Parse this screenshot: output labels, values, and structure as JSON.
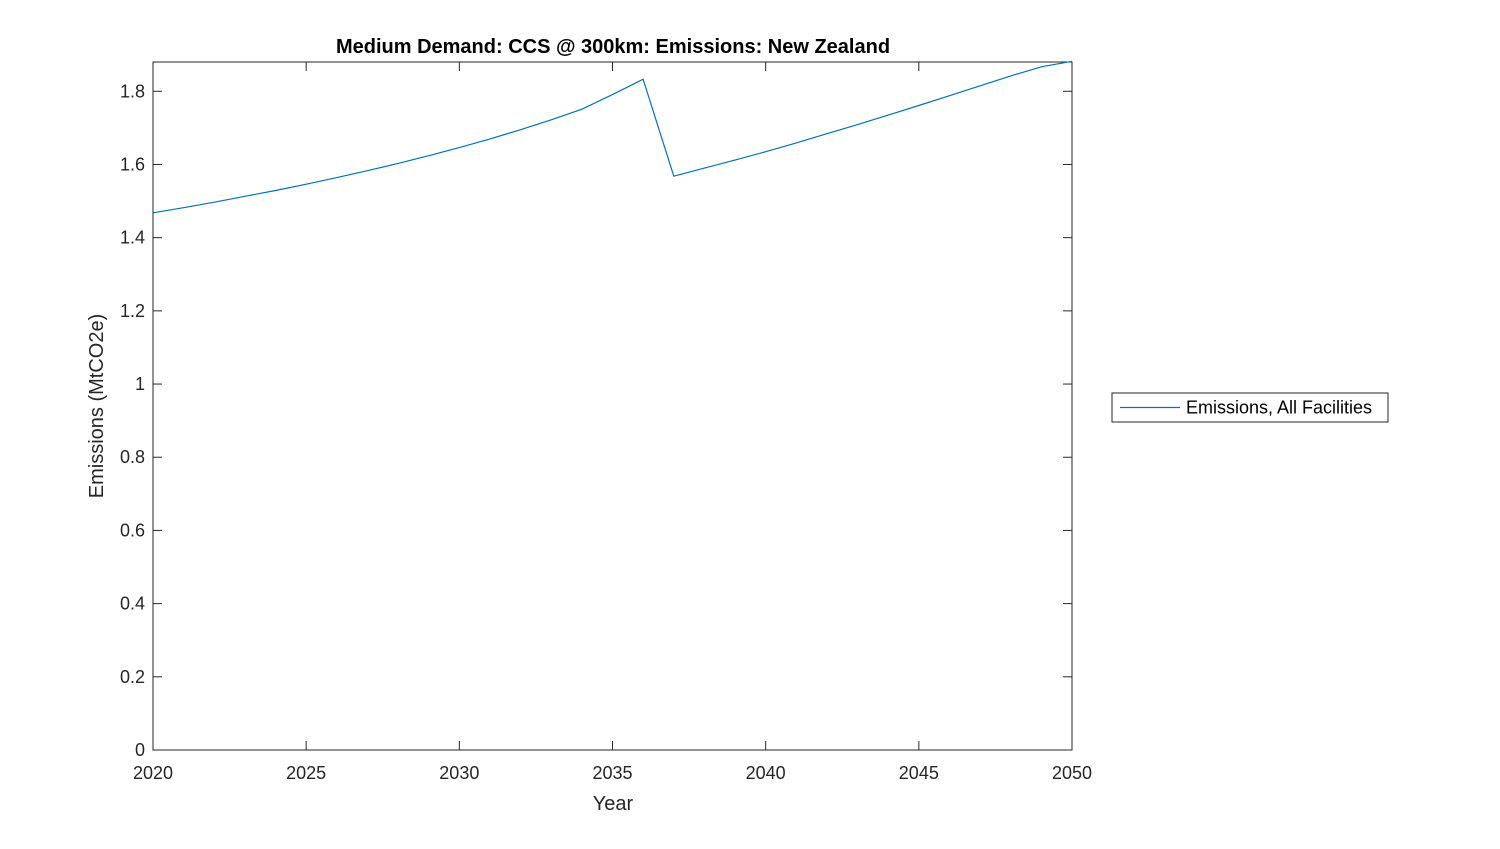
{
  "chart_data": {
    "type": "line",
    "title": "Medium Demand: CCS @ 300km: Emissions: New Zealand",
    "xlabel": "Year",
    "ylabel": "Emissions (MtCO2e)",
    "xlim": [
      2020,
      2050
    ],
    "ylim": [
      0,
      1.88
    ],
    "xticks": [
      2020,
      2025,
      2030,
      2035,
      2040,
      2045,
      2050
    ],
    "xtick_labels": [
      "2020",
      "2025",
      "2030",
      "2035",
      "2040",
      "2045",
      "2050"
    ],
    "yticks": [
      0,
      0.2,
      0.4,
      0.6,
      0.8,
      1,
      1.2,
      1.4,
      1.6,
      1.8
    ],
    "ytick_labels": [
      "0",
      "0.2",
      "0.4",
      "0.6",
      "0.8",
      "1",
      "1.2",
      "1.4",
      "1.6",
      "1.8"
    ],
    "grid": false,
    "legend_position": "outside-right",
    "series": [
      {
        "name": "Emissions, All Facilities",
        "color": "#0072BD",
        "x": [
          2020,
          2021,
          2022,
          2023,
          2024,
          2025,
          2026,
          2027,
          2028,
          2029,
          2030,
          2031,
          2032,
          2033,
          2034,
          2035,
          2036,
          2037,
          2038,
          2039,
          2040,
          2041,
          2042,
          2043,
          2044,
          2045,
          2046,
          2047,
          2048,
          2049,
          2050
        ],
        "y": [
          1.468,
          1.482,
          1.497,
          1.513,
          1.529,
          1.546,
          1.564,
          1.583,
          1.603,
          1.624,
          1.646,
          1.67,
          1.695,
          1.722,
          1.751,
          1.791,
          1.833,
          1.568,
          1.59,
          1.612,
          1.635,
          1.659,
          1.684,
          1.709,
          1.735,
          1.761,
          1.788,
          1.815,
          1.842,
          1.867,
          1.882
        ]
      }
    ]
  }
}
